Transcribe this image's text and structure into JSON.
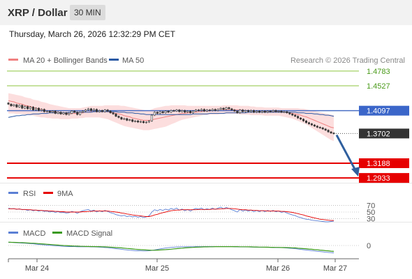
{
  "header": {
    "pair": "XRP / Dollar",
    "interval": "30 MIN"
  },
  "timestamp": "Thursday, March 26, 2026 12:32:29 PM CET",
  "colors": {
    "ma20": "#f08080",
    "bollinger": "#fbd3d3",
    "ma50": "#2a5aa5",
    "candle": "#333333",
    "green_level": "#8dc63f",
    "red_level": "#e60000",
    "pivot": "#4a6fc5",
    "current": "#333333",
    "arrow": "#2f5f9e",
    "rsi": "#5b7fd4",
    "rsi_ma": "#e60000",
    "macd": "#5b7fd4",
    "macd_signal": "#3a9a1a"
  },
  "chart_data": [
    {
      "type": "candlestick",
      "title": "XRP / Dollar",
      "legend": [
        {
          "name": "MA 20 + Bollinger Bands"
        },
        {
          "name": "MA 50"
        }
      ],
      "source": "Research © 2026 Trading Central",
      "x_ticks": [
        "Mar 24",
        "Mar 25",
        "Mar 26",
        "Mar 27"
      ],
      "ylim": [
        1.285,
        1.495
      ],
      "close": [
        1.421,
        1.418,
        1.42,
        1.416,
        1.419,
        1.414,
        1.417,
        1.413,
        1.416,
        1.411,
        1.414,
        1.41,
        1.412,
        1.408,
        1.409,
        1.407,
        1.409,
        1.405,
        1.407,
        1.404,
        1.406,
        1.403,
        1.405,
        1.409,
        1.407,
        1.403,
        1.407,
        1.409,
        1.411,
        1.413,
        1.41,
        1.412,
        1.408,
        1.41,
        1.408,
        1.411,
        1.409,
        1.406,
        1.404,
        1.4,
        1.398,
        1.395,
        1.396,
        1.393,
        1.394,
        1.391,
        1.392,
        1.39,
        1.391,
        1.389,
        1.39,
        1.392,
        1.402,
        1.407,
        1.405,
        1.408,
        1.406,
        1.409,
        1.407,
        1.41,
        1.409,
        1.411,
        1.408,
        1.41,
        1.407,
        1.409,
        1.406,
        1.409,
        1.411,
        1.41,
        1.412,
        1.409,
        1.411,
        1.41,
        1.412,
        1.41,
        1.412,
        1.414,
        1.412,
        1.415,
        1.413,
        1.411,
        1.409,
        1.406,
        1.411,
        1.408,
        1.41,
        1.408,
        1.41,
        1.407,
        1.409,
        1.407,
        1.409,
        1.407,
        1.409,
        1.408,
        1.41,
        1.408,
        1.409,
        1.407,
        1.408,
        1.406,
        1.404,
        1.402,
        1.4,
        1.397,
        1.395,
        1.392,
        1.389,
        1.387,
        1.385,
        1.383,
        1.381,
        1.38,
        1.378,
        1.376,
        1.373,
        1.371,
        1.37
      ],
      "ma20": [
        1.427,
        1.426,
        1.425,
        1.423,
        1.422,
        1.421,
        1.419,
        1.418,
        1.417,
        1.415,
        1.414,
        1.413,
        1.412,
        1.411,
        1.41,
        1.409,
        1.408,
        1.407,
        1.407,
        1.406,
        1.405,
        1.405,
        1.405,
        1.405,
        1.405,
        1.405,
        1.406,
        1.406,
        1.407,
        1.407,
        1.408,
        1.408,
        1.408,
        1.408,
        1.408,
        1.408,
        1.408,
        1.407,
        1.406,
        1.405,
        1.404,
        1.403,
        1.401,
        1.4,
        1.399,
        1.397,
        1.396,
        1.395,
        1.394,
        1.393,
        1.393,
        1.393,
        1.394,
        1.395,
        1.396,
        1.397,
        1.398,
        1.399,
        1.4,
        1.401,
        1.402,
        1.403,
        1.404,
        1.405,
        1.405,
        1.406,
        1.406,
        1.407,
        1.407,
        1.408,
        1.408,
        1.409,
        1.409,
        1.409,
        1.41,
        1.41,
        1.41,
        1.41,
        1.411,
        1.411,
        1.411,
        1.411,
        1.411,
        1.411,
        1.411,
        1.41,
        1.41,
        1.41,
        1.41,
        1.409,
        1.409,
        1.409,
        1.409,
        1.409,
        1.408,
        1.408,
        1.408,
        1.408,
        1.408,
        1.408,
        1.407,
        1.407,
        1.406,
        1.405,
        1.404,
        1.403,
        1.402,
        1.4,
        1.399,
        1.397,
        1.395,
        1.393,
        1.391,
        1.389,
        1.387,
        1.385,
        1.383,
        1.381,
        1.38
      ],
      "bb_upper": [
        1.44,
        1.439,
        1.438,
        1.437,
        1.436,
        1.435,
        1.433,
        1.432,
        1.431,
        1.429,
        1.428,
        1.427,
        1.425,
        1.424,
        1.423,
        1.421,
        1.42,
        1.419,
        1.418,
        1.417,
        1.416,
        1.415,
        1.414,
        1.414,
        1.414,
        1.414,
        1.414,
        1.415,
        1.416,
        1.417,
        1.418,
        1.418,
        1.418,
        1.418,
        1.418,
        1.419,
        1.419,
        1.419,
        1.419,
        1.419,
        1.419,
        1.418,
        1.418,
        1.417,
        1.416,
        1.415,
        1.414,
        1.413,
        1.412,
        1.411,
        1.41,
        1.41,
        1.412,
        1.414,
        1.415,
        1.416,
        1.417,
        1.418,
        1.418,
        1.419,
        1.419,
        1.419,
        1.419,
        1.419,
        1.419,
        1.418,
        1.418,
        1.418,
        1.418,
        1.418,
        1.418,
        1.418,
        1.418,
        1.418,
        1.418,
        1.418,
        1.418,
        1.418,
        1.419,
        1.419,
        1.419,
        1.419,
        1.419,
        1.419,
        1.418,
        1.418,
        1.418,
        1.418,
        1.417,
        1.417,
        1.416,
        1.416,
        1.416,
        1.415,
        1.415,
        1.415,
        1.415,
        1.415,
        1.415,
        1.414,
        1.414,
        1.414,
        1.414,
        1.414,
        1.414,
        1.414,
        1.413,
        1.413,
        1.412,
        1.411,
        1.41,
        1.409,
        1.408,
        1.407,
        1.406,
        1.405,
        1.404,
        1.403,
        1.402
      ],
      "bb_lower": [
        1.405,
        1.405,
        1.405,
        1.404,
        1.404,
        1.404,
        1.403,
        1.403,
        1.402,
        1.401,
        1.4,
        1.399,
        1.398,
        1.398,
        1.397,
        1.397,
        1.396,
        1.396,
        1.396,
        1.395,
        1.395,
        1.395,
        1.395,
        1.396,
        1.396,
        1.396,
        1.397,
        1.397,
        1.398,
        1.398,
        1.398,
        1.398,
        1.398,
        1.398,
        1.397,
        1.396,
        1.395,
        1.393,
        1.391,
        1.389,
        1.387,
        1.385,
        1.383,
        1.382,
        1.381,
        1.38,
        1.379,
        1.378,
        1.377,
        1.376,
        1.376,
        1.376,
        1.377,
        1.378,
        1.379,
        1.38,
        1.381,
        1.382,
        1.384,
        1.386,
        1.388,
        1.39,
        1.392,
        1.394,
        1.395,
        1.396,
        1.397,
        1.398,
        1.399,
        1.4,
        1.401,
        1.402,
        1.402,
        1.403,
        1.403,
        1.403,
        1.403,
        1.404,
        1.404,
        1.404,
        1.404,
        1.404,
        1.404,
        1.404,
        1.403,
        1.403,
        1.403,
        1.403,
        1.402,
        1.402,
        1.402,
        1.402,
        1.402,
        1.401,
        1.401,
        1.401,
        1.401,
        1.401,
        1.401,
        1.4,
        1.399,
        1.398,
        1.397,
        1.396,
        1.394,
        1.392,
        1.39,
        1.388,
        1.386,
        1.383,
        1.38,
        1.377,
        1.374,
        1.371,
        1.368,
        1.365,
        1.362,
        1.359,
        1.357
      ],
      "ma50": [
        1.398,
        1.399,
        1.4,
        1.401,
        1.401,
        1.402,
        1.402,
        1.403,
        1.403,
        1.404,
        1.404,
        1.404,
        1.405,
        1.405,
        1.405,
        1.406,
        1.406,
        1.406,
        1.406,
        1.406,
        1.406,
        1.406,
        1.407,
        1.407,
        1.407,
        1.407,
        1.407,
        1.407,
        1.407,
        1.407,
        1.407,
        1.408,
        1.408,
        1.408,
        1.408,
        1.408,
        1.408,
        1.408,
        1.408,
        1.408,
        1.407,
        1.407,
        1.407,
        1.406,
        1.406,
        1.406,
        1.405,
        1.405,
        1.404,
        1.404,
        1.403,
        1.403,
        1.403,
        1.403,
        1.403,
        1.403,
        1.403,
        1.403,
        1.403,
        1.403,
        1.403,
        1.403,
        1.403,
        1.403,
        1.403,
        1.403,
        1.403,
        1.404,
        1.404,
        1.404,
        1.404,
        1.404,
        1.404,
        1.405,
        1.405,
        1.405,
        1.405,
        1.405,
        1.405,
        1.406,
        1.406,
        1.406,
        1.406,
        1.406,
        1.406,
        1.406,
        1.406,
        1.407,
        1.407,
        1.407,
        1.407,
        1.407,
        1.407,
        1.407,
        1.407,
        1.407,
        1.407,
        1.407,
        1.407,
        1.407,
        1.407,
        1.407,
        1.407,
        1.407,
        1.407,
        1.406,
        1.406,
        1.406,
        1.405,
        1.405,
        1.405,
        1.404,
        1.404,
        1.403,
        1.403,
        1.402,
        1.402,
        1.401,
        1.4
      ],
      "levels": [
        {
          "value": 1.4783,
          "label": "1.4783",
          "kind": "resistance"
        },
        {
          "value": 1.4527,
          "label": "1.4527",
          "kind": "resistance"
        },
        {
          "value": 1.4097,
          "label": "1.4097",
          "kind": "pivot"
        },
        {
          "value": 1.3702,
          "label": "1.3702",
          "kind": "current"
        },
        {
          "value": 1.3188,
          "label": "1.3188",
          "kind": "support"
        },
        {
          "value": 1.2933,
          "label": "1.2933",
          "kind": "support"
        }
      ],
      "arrow": {
        "from": 1.37,
        "to": 1.2933,
        "direction": "down"
      }
    },
    {
      "type": "line",
      "legend": [
        {
          "name": "RSI"
        },
        {
          "name": "9MA"
        }
      ],
      "ylim": [
        20,
        80
      ],
      "ticks": [
        "70",
        "50",
        "30"
      ],
      "rsi": [
        62,
        60,
        61,
        58,
        60,
        57,
        58,
        55,
        57,
        54,
        56,
        53,
        55,
        52,
        53,
        50,
        52,
        49,
        51,
        48,
        49,
        47,
        48,
        52,
        50,
        46,
        51,
        54,
        56,
        58,
        53,
        56,
        50,
        54,
        51,
        55,
        52,
        48,
        46,
        42,
        40,
        38,
        40,
        36,
        38,
        35,
        37,
        34,
        36,
        33,
        35,
        38,
        50,
        57,
        54,
        58,
        55,
        59,
        56,
        61,
        58,
        62,
        56,
        59,
        54,
        58,
        53,
        58,
        61,
        59,
        62,
        57,
        60,
        58,
        62,
        58,
        62,
        65,
        60,
        64,
        61,
        57,
        54,
        50,
        58,
        53,
        56,
        53,
        56,
        51,
        55,
        51,
        55,
        51,
        55,
        52,
        55,
        51,
        53,
        49,
        51,
        47,
        44,
        41,
        39,
        35,
        33,
        30,
        28,
        27,
        25,
        24,
        23,
        22,
        21,
        20,
        20,
        21,
        22
      ],
      "rsi_ma": [
        60,
        60,
        60,
        59,
        59,
        58,
        58,
        57,
        57,
        56,
        56,
        55,
        55,
        54,
        54,
        53,
        53,
        52,
        52,
        51,
        51,
        50,
        50,
        50,
        50,
        50,
        50,
        51,
        51,
        52,
        52,
        53,
        53,
        53,
        53,
        53,
        53,
        52,
        51,
        50,
        49,
        47,
        46,
        44,
        43,
        41,
        40,
        39,
        38,
        37,
        36,
        36,
        38,
        41,
        43,
        46,
        48,
        50,
        52,
        54,
        55,
        56,
        56,
        57,
        57,
        57,
        57,
        57,
        57,
        58,
        58,
        58,
        58,
        58,
        59,
        59,
        59,
        60,
        60,
        61,
        61,
        61,
        60,
        59,
        58,
        57,
        57,
        56,
        56,
        55,
        55,
        54,
        54,
        54,
        53,
        53,
        53,
        53,
        53,
        52,
        52,
        51,
        50,
        49,
        47,
        45,
        43,
        41,
        38,
        36,
        34,
        32,
        30,
        28,
        27,
        26,
        25,
        24,
        24
      ]
    },
    {
      "type": "line",
      "legend": [
        {
          "name": "MACD"
        },
        {
          "name": "MACD Signal"
        }
      ],
      "ylim": [
        -0.012,
        0.004
      ],
      "ticks": [
        "0"
      ],
      "macd": [
        0.003,
        0.0029,
        0.0028,
        0.0026,
        0.0025,
        0.0023,
        0.0022,
        0.002,
        0.0018,
        0.0016,
        0.0013,
        0.001,
        0.0008,
        0.0006,
        0.0004,
        0.0002,
        0.0,
        -0.0002,
        -0.0004,
        -0.0006,
        -0.0008,
        -0.0009,
        -0.001,
        -0.001,
        -0.0011,
        -0.0012,
        -0.0012,
        -0.0012,
        -0.0012,
        -0.0012,
        -0.0013,
        -0.0013,
        -0.0014,
        -0.0015,
        -0.0017,
        -0.0019,
        -0.0021,
        -0.0024,
        -0.0027,
        -0.003,
        -0.0033,
        -0.0036,
        -0.0039,
        -0.0042,
        -0.0045,
        -0.0047,
        -0.0049,
        -0.005,
        -0.0051,
        -0.0052,
        -0.0052,
        -0.0051,
        -0.0047,
        -0.0042,
        -0.0037,
        -0.0032,
        -0.0028,
        -0.0024,
        -0.0021,
        -0.0018,
        -0.0016,
        -0.0014,
        -0.0013,
        -0.0012,
        -0.0012,
        -0.0012,
        -0.0012,
        -0.0012,
        -0.0011,
        -0.0011,
        -0.0011,
        -0.001,
        -0.001,
        -0.001,
        -0.001,
        -0.001,
        -0.001,
        -0.001,
        -0.001,
        -0.001,
        -0.0011,
        -0.0011,
        -0.0012,
        -0.0012,
        -0.0013,
        -0.0013,
        -0.0014,
        -0.0014,
        -0.0015,
        -0.0015,
        -0.0016,
        -0.0016,
        -0.0017,
        -0.0017,
        -0.0018,
        -0.0018,
        -0.0019,
        -0.0019,
        -0.002,
        -0.0021,
        -0.0022,
        -0.0024,
        -0.0026,
        -0.0028,
        -0.0031,
        -0.0034,
        -0.0037,
        -0.004,
        -0.0043,
        -0.0046,
        -0.0049,
        -0.0052,
        -0.0055,
        -0.0058,
        -0.0061,
        -0.0064,
        -0.0066,
        -0.0068,
        -0.007
      ],
      "macd_signal": [
        0.0032,
        0.0031,
        0.003,
        0.0029,
        0.0028,
        0.0027,
        0.0026,
        0.0025,
        0.0023,
        0.0022,
        0.002,
        0.0018,
        0.0016,
        0.0014,
        0.0012,
        0.001,
        0.0008,
        0.0006,
        0.0004,
        0.0002,
        0.0,
        -0.0001,
        -0.0003,
        -0.0004,
        -0.0005,
        -0.0006,
        -0.0007,
        -0.0008,
        -0.0009,
        -0.0009,
        -0.001,
        -0.001,
        -0.0011,
        -0.0011,
        -0.0012,
        -0.0013,
        -0.0014,
        -0.0015,
        -0.0017,
        -0.0019,
        -0.0021,
        -0.0023,
        -0.0025,
        -0.0028,
        -0.003,
        -0.0033,
        -0.0035,
        -0.0037,
        -0.0039,
        -0.0041,
        -0.0043,
        -0.0044,
        -0.0045,
        -0.0045,
        -0.0044,
        -0.0043,
        -0.0041,
        -0.0039,
        -0.0037,
        -0.0035,
        -0.0032,
        -0.003,
        -0.0027,
        -0.0025,
        -0.0023,
        -0.0021,
        -0.0019,
        -0.0018,
        -0.0016,
        -0.0015,
        -0.0014,
        -0.0013,
        -0.0013,
        -0.0012,
        -0.0012,
        -0.0011,
        -0.0011,
        -0.0011,
        -0.0011,
        -0.0011,
        -0.0011,
        -0.0011,
        -0.0011,
        -0.0011,
        -0.0012,
        -0.0012,
        -0.0012,
        -0.0013,
        -0.0013,
        -0.0014,
        -0.0014,
        -0.0015,
        -0.0015,
        -0.0016,
        -0.0016,
        -0.0017,
        -0.0017,
        -0.0018,
        -0.0018,
        -0.0019,
        -0.0019,
        -0.002,
        -0.0021,
        -0.0022,
        -0.0023,
        -0.0025,
        -0.0027,
        -0.0029,
        -0.0031,
        -0.0034,
        -0.0036,
        -0.0039,
        -0.0041,
        -0.0044,
        -0.0046,
        -0.0049,
        -0.0051,
        -0.0054,
        -0.0056
      ]
    }
  ]
}
